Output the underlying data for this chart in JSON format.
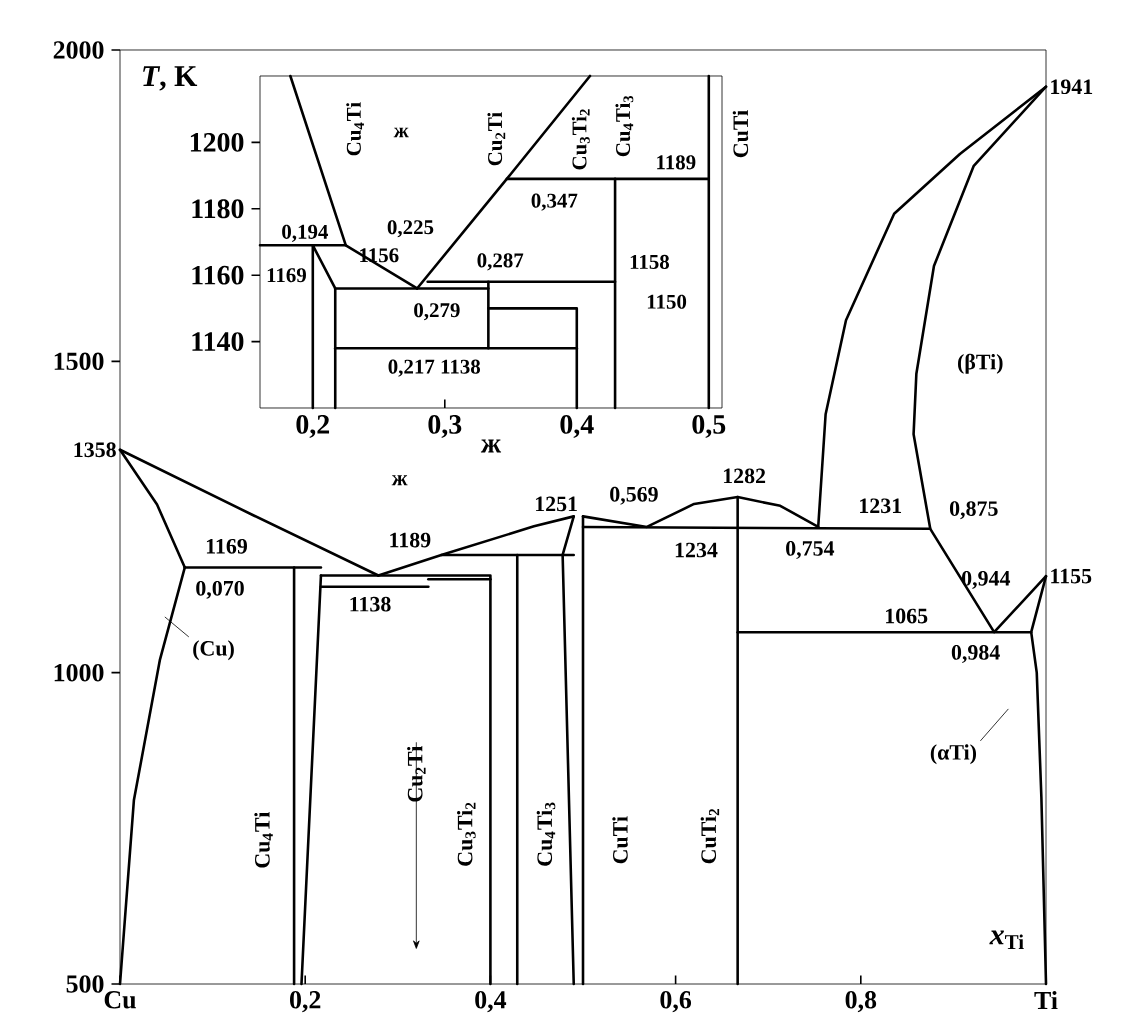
{
  "chart_data": [
    {
      "type": "line",
      "xlabel": "*x*$_{Ti}$",
      "ylabel": "*T*, K",
      "xlim": [
        0,
        1
      ],
      "ylim": [
        500,
        2000
      ],
      "xticks": [
        {
          "value": 0,
          "label": "Cu"
        },
        {
          "value": 0.2,
          "label": "0,2"
        },
        {
          "value": 0.4,
          "label": "0,4"
        },
        {
          "value": 0.6,
          "label": "0,6"
        },
        {
          "value": 0.8,
          "label": "0,8"
        },
        {
          "value": 1,
          "label": "Ti"
        }
      ],
      "yticks": [
        500,
        1000,
        1500,
        2000
      ],
      "series": [
        {
          "color": "#000000",
          "x": [
            0,
            0.145,
            0.279
          ],
          "values": [
            1358,
            1252,
            1156
          ]
        },
        {
          "color": "#000000",
          "x": [
            0.279,
            0.347,
            0.447,
            0.49
          ],
          "values": [
            1156,
            1189,
            1235,
            1251
          ]
        },
        {
          "color": "#000000",
          "x": [
            0.5,
            0.569,
            0.62,
            0.667,
            0.713,
            0.754
          ],
          "values": [
            1251,
            1234,
            1271,
            1282,
            1268,
            1234
          ]
        },
        {
          "color": "#000000",
          "x": [
            0.754,
            0.762,
            0.784,
            0.836,
            0.907,
            1
          ],
          "values": [
            1234,
            1415,
            1566,
            1737,
            1833,
            1941
          ]
        },
        {
          "color": "#000000",
          "x": [
            1,
            0.922,
            0.879,
            0.86,
            0.857,
            0.875,
            0.944,
            1
          ],
          "values": [
            1941,
            1814,
            1653,
            1480,
            1383,
            1231,
            1065,
            1155
          ]
        },
        {
          "color": "#000000",
          "x": [
            0,
            0.04,
            0.07
          ],
          "values": [
            1358,
            1270,
            1169
          ]
        },
        {
          "color": "#000000",
          "x": [
            0.07,
            0.043,
            0.015,
            0
          ],
          "values": [
            1169,
            1020,
            795,
            500
          ]
        },
        {
          "color": "#000000",
          "x": [
            0.07,
            0.217
          ],
          "values": [
            1169,
            1169
          ]
        },
        {
          "color": "#000000",
          "x": [
            0.188,
            0.188
          ],
          "values": [
            1169,
            500
          ]
        },
        {
          "color": "#000000",
          "x": [
            0.217,
            0.196
          ],
          "values": [
            1156,
            500
          ]
        },
        {
          "color": "#000000",
          "x": [
            0.217,
            0.4,
            0.4
          ],
          "values": [
            1156,
            1156,
            500
          ]
        },
        {
          "color": "#000000",
          "x": [
            0.217,
            0.333
          ],
          "values": [
            1138,
            1138
          ]
        },
        {
          "color": "#000000",
          "x": [
            0.333,
            0.4
          ],
          "values": [
            1150,
            1150
          ]
        },
        {
          "color": "#000000",
          "x": [
            0.429,
            0.429
          ],
          "values": [
            1189,
            500
          ]
        },
        {
          "color": "#000000",
          "x": [
            0.347,
            0.49
          ],
          "values": [
            1189,
            1189
          ]
        },
        {
          "color": "#000000",
          "x": [
            0.49,
            0.478,
            0.49
          ],
          "values": [
            1251,
            1189,
            500
          ]
        },
        {
          "color": "#000000",
          "x": [
            0.5,
            0.5
          ],
          "values": [
            1251,
            500
          ]
        },
        {
          "color": "#000000",
          "x": [
            0.5,
            0.875
          ],
          "values": [
            1234,
            1231
          ]
        },
        {
          "color": "#000000",
          "x": [
            0.667,
            0.667
          ],
          "values": [
            1282,
            500
          ]
        },
        {
          "color": "#000000",
          "x": [
            0.667,
            0.984
          ],
          "values": [
            1065,
            1065
          ]
        },
        {
          "color": "#000000",
          "x": [
            1,
            0.984,
            0.99,
            0.995,
            1
          ],
          "values": [
            1155,
            1065,
            1000,
            800,
            500
          ]
        }
      ],
      "annotations": [
        {
          "text": "1358",
          "x": 0,
          "y": 1358
        },
        {
          "text": "1941",
          "x": 1,
          "y": 1941
        },
        {
          "text": "1155",
          "x": 1,
          "y": 1155
        },
        "1169",
        "0,070",
        "(Cu)",
        "1189",
        "1138",
        "Cu$_{2}$Ti",
        "Cu$_{4}$Ti",
        "Cu$_{3}$Ti$_{2}$",
        "Cu$_{4}$Ti$_{3}$",
        "CuTi",
        "CuTi$_{2}$",
        "1251",
        "0,569",
        "1282",
        "1234",
        "0,754",
        "1231",
        "0,875",
        "(βTi)",
        "0,944",
        "1065",
        "0,984",
        "(αTi)",
        "ж",
        "CuTi"
      ]
    },
    {
      "type": "line",
      "xlabel": "ж",
      "xlim": [
        0.16,
        0.51
      ],
      "ylim": [
        1120,
        1220
      ],
      "xticks": [
        {
          "value": 0.2,
          "label": "0,2"
        },
        {
          "value": 0.3,
          "label": "0,3"
        },
        {
          "value": 0.4,
          "label": "0,4"
        },
        {
          "value": 0.5,
          "label": "0,5"
        }
      ],
      "yticks": [
        1140,
        1160,
        1180,
        1200
      ],
      "series": [
        {
          "color": "#000000",
          "x": [
            0.183,
            0.225,
            0.279
          ],
          "values": [
            1220,
            1169,
            1156
          ]
        },
        {
          "color": "#000000",
          "x": [
            0.279,
            0.347,
            0.41
          ],
          "values": [
            1156,
            1189,
            1220
          ]
        },
        {
          "color": "#000000",
          "x": [
            0.16,
            0.2,
            0.2
          ],
          "values": [
            1169,
            1169,
            1120
          ]
        },
        {
          "color": "#000000",
          "x": [
            0.225,
            0.2,
            0.217,
            0.217
          ],
          "values": [
            1169,
            1169,
            1156,
            1120
          ]
        },
        {
          "color": "#000000",
          "x": [
            0.217,
            0.333
          ],
          "values": [
            1156,
            1156
          ]
        },
        {
          "color": "#000000",
          "x": [
            0.287,
            0.429
          ],
          "values": [
            1158,
            1158
          ]
        },
        {
          "color": "#000000",
          "x": [
            0.333,
            0.333
          ],
          "values": [
            1158,
            1138
          ]
        },
        {
          "color": "#000000",
          "x": [
            0.333,
            0.4,
            0.4
          ],
          "values": [
            1150,
            1150,
            1120
          ]
        },
        {
          "color": "#000000",
          "x": [
            0.217,
            0.4
          ],
          "values": [
            1138,
            1138
          ]
        },
        {
          "color": "#000000",
          "x": [
            0.429,
            0.429
          ],
          "values": [
            1189,
            1120
          ]
        },
        {
          "color": "#000000",
          "x": [
            0.347,
            0.5,
            0.5
          ],
          "values": [
            1189,
            1189,
            1120
          ]
        },
        {
          "color": "#000000",
          "x": [
            0.5,
            0.5
          ],
          "values": [
            1220,
            1189
          ]
        }
      ],
      "annotations": [
        "Cu$_{4}$Ti",
        "ж",
        "Cu$_{2}$Ti",
        "Cu$_{3}$Ti$_{2}$",
        "Cu$_{4}$Ti$_{3}$",
        "1189",
        "0,347",
        {
          "text": "0,194",
          "x": 0.194,
          "y": 1169
        },
        "0,225",
        "1169",
        "1156",
        "0,287",
        "1158",
        "0,279",
        "1150",
        "0,217 1138"
      ]
    }
  ]
}
